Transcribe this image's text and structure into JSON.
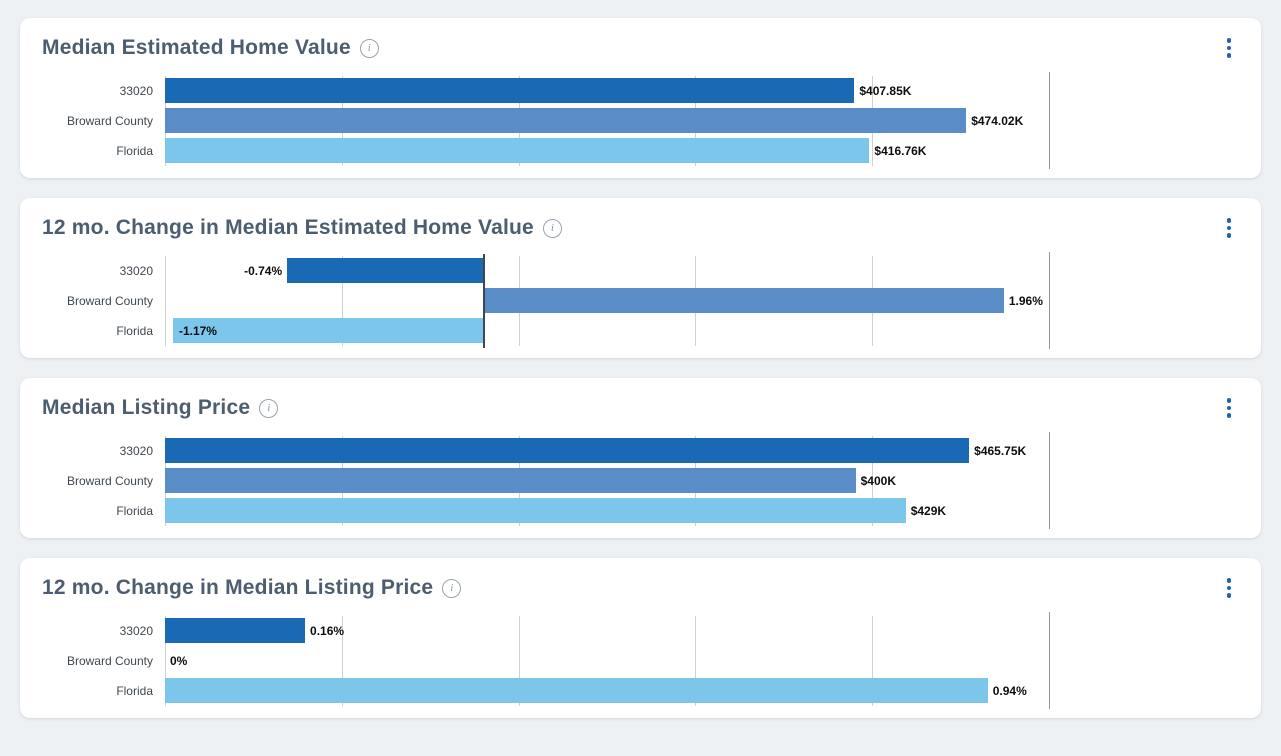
{
  "page": {
    "background_color": "#eef1f4",
    "card_color": "#ffffff"
  },
  "palette": {
    "bar_colors": [
      "#1a69b4",
      "#5a8dc8",
      "#7cc5eb"
    ],
    "title_color": "#4d5d70",
    "kebab_dot_color": "#2065a7",
    "info_icon_color": "#97a3af",
    "gridline_color": "#cdd1d4",
    "zero_line_color": "#3f4750",
    "value_label_color": "#0d0d0d"
  },
  "icons": {
    "info": "info-icon",
    "menu": "kebab-menu-icon",
    "info_glyph": "i"
  },
  "chart_data": [
    {
      "type": "bar",
      "orientation": "horizontal",
      "title": "Median Estimated Home Value",
      "categories": [
        "33020",
        "Broward County",
        "Florida"
      ],
      "values": [
        407.85,
        474.02,
        416.76
      ],
      "value_labels": [
        "$407.85K",
        "$474.02K",
        "$416.76K"
      ],
      "unit": "USD thousands",
      "xlim": [
        0,
        523
      ],
      "grid_divisions": 5,
      "legend": "none",
      "grid": "vertical"
    },
    {
      "type": "bar",
      "orientation": "horizontal",
      "title": "12 mo. Change in Median Estimated Home Value",
      "categories": [
        "33020",
        "Broward County",
        "Florida"
      ],
      "values": [
        -0.74,
        1.96,
        -1.17
      ],
      "value_labels": [
        "-0.74%",
        "1.96%",
        "-1.17%"
      ],
      "unit": "percent",
      "xlim": [
        -1.2,
        2.13
      ],
      "grid_divisions": 5,
      "legend": "none",
      "grid": "vertical"
    },
    {
      "type": "bar",
      "orientation": "horizontal",
      "title": "Median Listing Price",
      "categories": [
        "33020",
        "Broward County",
        "Florida"
      ],
      "values": [
        465.75,
        400,
        429
      ],
      "value_labels": [
        "$465.75K",
        "$400K",
        "$429K"
      ],
      "unit": "USD thousands",
      "xlim": [
        0,
        512
      ],
      "grid_divisions": 5,
      "legend": "none",
      "grid": "vertical"
    },
    {
      "type": "bar",
      "orientation": "horizontal",
      "title": "12 mo. Change in Median Listing Price",
      "categories": [
        "33020",
        "Broward County",
        "Florida"
      ],
      "values": [
        0.16,
        0,
        0.94
      ],
      "value_labels": [
        "0.16%",
        "0%",
        "0.94%"
      ],
      "unit": "percent",
      "xlim": [
        0,
        1.01
      ],
      "grid_divisions": 5,
      "legend": "none",
      "grid": "vertical"
    }
  ]
}
